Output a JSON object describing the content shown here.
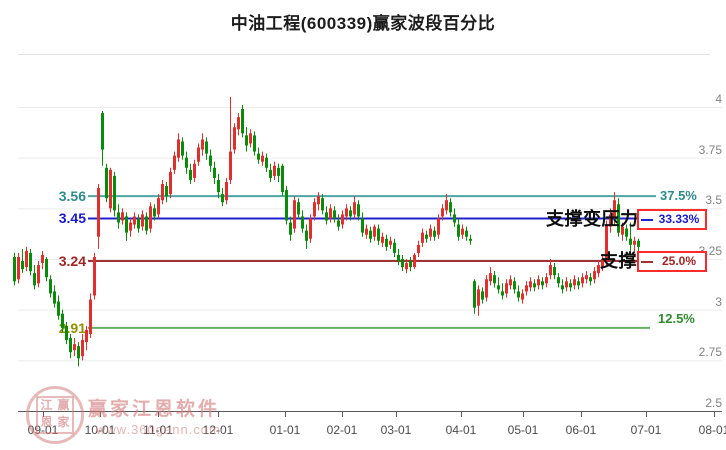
{
  "header": {
    "title": "中油工程(600339)赢家波段百分比"
  },
  "annotations": {
    "support_becomes_resistance": "支撑变压力",
    "support": "支撑"
  },
  "watermark": {
    "brand": "赢家江恩软件",
    "url": "www.360gann.com",
    "seal_chars": [
      "江",
      "赢",
      "恩",
      "家"
    ]
  },
  "colors": {
    "up": "#e12e2e",
    "down": "#0b8b0b",
    "teal_band": "#4da6a6",
    "teal_text": "#2e8b8b",
    "blue_band": "#2121cc",
    "blue_text": "#1a1acd",
    "darkred_band": "#a03434",
    "darkred_text": "#a02525",
    "green_band": "#63b163",
    "green_text": "#2e8b2e",
    "olive_text": "#8f8f00",
    "box_border": "#ff2a2a",
    "grid": "#ebebeb",
    "axis": "#5a5a5a",
    "y_tick_text": "#828282",
    "x_tick_text": "#4c4c4c"
  },
  "chart_data": {
    "type": "candlestick",
    "title": "中油工程(600339)赢家波段百分比",
    "ylim": [
      2.5,
      4.0
    ],
    "grid": true,
    "y_axis": {
      "values": [
        4,
        3.75,
        3.5,
        3.25,
        3,
        2.75,
        2.5
      ],
      "labels": [
        "4",
        "3.75",
        "3.5",
        "3.25",
        "3",
        "2.75",
        "2.5"
      ]
    },
    "x_axis": {
      "labels": [
        "09-01",
        "10-01",
        "11-01",
        "12-01",
        "01-01",
        "02-01",
        "03-01",
        "04-01",
        "05-01",
        "06-01",
        "07-01",
        "08-01"
      ],
      "tick_x": [
        43,
        100,
        158,
        218,
        285,
        342,
        396,
        461,
        523,
        581,
        646,
        714
      ]
    },
    "reference_lines": [
      {
        "id": "band-37-5",
        "price": 3.56,
        "price_label": "3.56",
        "pct_label": "37.5%",
        "boxed": false,
        "x_end": 656
      },
      {
        "id": "band-33-33",
        "price": 3.45,
        "price_label": "3.45",
        "pct_label": "33.33%",
        "boxed": true,
        "x_end": 652
      },
      {
        "id": "band-25-0",
        "price": 3.24,
        "price_label": "3.24",
        "pct_label": "25.0%",
        "boxed": true,
        "x_end": 652
      },
      {
        "id": "band-12-5",
        "price": 2.91,
        "price_label": "2.91",
        "pct_label": "12.5%",
        "boxed": false,
        "x_end": 650
      }
    ],
    "candles_format": [
      "open",
      "high",
      "low",
      "close"
    ],
    "candles": [
      [
        3.26,
        3.28,
        3.12,
        3.14
      ],
      [
        3.15,
        3.28,
        3.13,
        3.26
      ],
      [
        3.24,
        3.3,
        3.18,
        3.2
      ],
      [
        3.21,
        3.31,
        3.19,
        3.29
      ],
      [
        3.28,
        3.3,
        3.17,
        3.19
      ],
      [
        3.18,
        3.22,
        3.1,
        3.12
      ],
      [
        3.13,
        3.24,
        3.11,
        3.22
      ],
      [
        3.23,
        3.29,
        3.2,
        3.27
      ],
      [
        3.25,
        3.26,
        3.14,
        3.16
      ],
      [
        3.15,
        3.17,
        3.06,
        3.08
      ],
      [
        3.09,
        3.12,
        3.01,
        3.03
      ],
      [
        3.04,
        3.07,
        2.95,
        2.97
      ],
      [
        2.98,
        3.0,
        2.89,
        2.91
      ],
      [
        2.92,
        2.94,
        2.83,
        2.85
      ],
      [
        2.86,
        2.88,
        2.76,
        2.79
      ],
      [
        2.8,
        2.86,
        2.77,
        2.83
      ],
      [
        2.82,
        2.84,
        2.72,
        2.76
      ],
      [
        2.77,
        2.88,
        2.75,
        2.85
      ],
      [
        2.84,
        2.92,
        2.8,
        2.9
      ],
      [
        2.88,
        3.08,
        2.86,
        3.05
      ],
      [
        3.07,
        3.28,
        3.05,
        3.26
      ],
      [
        3.36,
        3.62,
        3.3,
        3.6
      ],
      [
        3.97,
        3.98,
        3.71,
        3.79
      ],
      [
        3.7,
        3.72,
        3.53,
        3.55
      ],
      [
        3.5,
        3.7,
        3.48,
        3.69
      ],
      [
        3.66,
        3.68,
        3.46,
        3.49
      ],
      [
        3.48,
        3.52,
        3.4,
        3.43
      ],
      [
        3.44,
        3.5,
        3.42,
        3.48
      ],
      [
        3.46,
        3.48,
        3.34,
        3.38
      ],
      [
        3.39,
        3.45,
        3.36,
        3.43
      ],
      [
        3.42,
        3.48,
        3.4,
        3.46
      ],
      [
        3.45,
        3.47,
        3.38,
        3.4
      ],
      [
        3.41,
        3.49,
        3.39,
        3.47
      ],
      [
        3.46,
        3.48,
        3.37,
        3.39
      ],
      [
        3.4,
        3.53,
        3.38,
        3.51
      ],
      [
        3.5,
        3.52,
        3.44,
        3.46
      ],
      [
        3.47,
        3.57,
        3.45,
        3.55
      ],
      [
        3.54,
        3.64,
        3.52,
        3.62
      ],
      [
        3.61,
        3.63,
        3.53,
        3.56
      ],
      [
        3.57,
        3.7,
        3.55,
        3.68
      ],
      [
        3.69,
        3.78,
        3.67,
        3.76
      ],
      [
        3.75,
        3.87,
        3.73,
        3.84
      ],
      [
        3.83,
        3.85,
        3.74,
        3.76
      ],
      [
        3.75,
        3.78,
        3.67,
        3.7
      ],
      [
        3.69,
        3.72,
        3.62,
        3.64
      ],
      [
        3.65,
        3.74,
        3.63,
        3.72
      ],
      [
        3.73,
        3.82,
        3.71,
        3.8
      ],
      [
        3.79,
        3.87,
        3.76,
        3.84
      ],
      [
        3.83,
        3.85,
        3.74,
        3.77
      ],
      [
        3.76,
        3.79,
        3.68,
        3.71
      ],
      [
        3.7,
        3.73,
        3.62,
        3.65
      ],
      [
        3.64,
        3.67,
        3.55,
        3.58
      ],
      [
        3.57,
        3.6,
        3.51,
        3.53
      ],
      [
        3.54,
        3.65,
        3.52,
        3.63
      ],
      [
        3.64,
        4.05,
        3.62,
        3.78
      ],
      [
        3.79,
        3.92,
        3.77,
        3.9
      ],
      [
        3.89,
        3.97,
        3.86,
        3.95
      ],
      [
        3.99,
        4.01,
        3.85,
        3.87
      ],
      [
        3.86,
        3.9,
        3.78,
        3.81
      ],
      [
        3.82,
        3.89,
        3.8,
        3.87
      ],
      [
        3.86,
        3.88,
        3.76,
        3.78
      ],
      [
        3.77,
        3.8,
        3.72,
        3.74
      ],
      [
        3.73,
        3.78,
        3.71,
        3.76
      ],
      [
        3.75,
        3.77,
        3.68,
        3.7
      ],
      [
        3.69,
        3.72,
        3.63,
        3.65
      ],
      [
        3.66,
        3.73,
        3.64,
        3.71
      ],
      [
        3.7,
        3.72,
        3.63,
        3.66
      ],
      [
        3.71,
        3.72,
        3.56,
        3.58
      ],
      [
        3.59,
        3.61,
        3.42,
        3.44
      ],
      [
        3.43,
        3.46,
        3.34,
        3.37
      ],
      [
        3.4,
        3.56,
        3.38,
        3.54
      ],
      [
        3.53,
        3.55,
        3.45,
        3.47
      ],
      [
        3.46,
        3.49,
        3.38,
        3.4
      ],
      [
        3.39,
        3.42,
        3.3,
        3.34
      ],
      [
        3.35,
        3.47,
        3.33,
        3.45
      ],
      [
        3.46,
        3.55,
        3.44,
        3.53
      ],
      [
        3.52,
        3.58,
        3.49,
        3.56
      ],
      [
        3.55,
        3.57,
        3.47,
        3.49
      ],
      [
        3.48,
        3.51,
        3.42,
        3.44
      ],
      [
        3.45,
        3.52,
        3.43,
        3.5
      ],
      [
        3.49,
        3.51,
        3.43,
        3.45
      ],
      [
        3.44,
        3.47,
        3.39,
        3.41
      ],
      [
        3.42,
        3.49,
        3.4,
        3.47
      ],
      [
        3.46,
        3.52,
        3.44,
        3.5
      ],
      [
        3.49,
        3.51,
        3.44,
        3.46
      ],
      [
        3.47,
        3.56,
        3.45,
        3.53
      ],
      [
        3.52,
        3.54,
        3.44,
        3.46
      ],
      [
        3.45,
        3.48,
        3.36,
        3.38
      ],
      [
        3.37,
        3.42,
        3.35,
        3.4
      ],
      [
        3.39,
        3.41,
        3.33,
        3.35
      ],
      [
        3.36,
        3.42,
        3.34,
        3.41
      ],
      [
        3.4,
        3.42,
        3.32,
        3.34
      ],
      [
        3.33,
        3.38,
        3.31,
        3.36
      ],
      [
        3.35,
        3.37,
        3.29,
        3.31
      ],
      [
        3.32,
        3.36,
        3.3,
        3.34
      ],
      [
        3.33,
        3.35,
        3.26,
        3.28
      ],
      [
        3.27,
        3.3,
        3.22,
        3.24
      ],
      [
        3.25,
        3.27,
        3.19,
        3.21
      ],
      [
        3.2,
        3.25,
        3.18,
        3.23
      ],
      [
        3.24,
        3.26,
        3.19,
        3.21
      ],
      [
        3.21,
        3.28,
        3.2,
        3.27
      ],
      [
        3.28,
        3.34,
        3.26,
        3.32
      ],
      [
        3.33,
        3.4,
        3.31,
        3.38
      ],
      [
        3.37,
        3.39,
        3.33,
        3.35
      ],
      [
        3.36,
        3.42,
        3.34,
        3.4
      ],
      [
        3.39,
        3.41,
        3.34,
        3.36
      ],
      [
        3.37,
        3.47,
        3.35,
        3.45
      ],
      [
        3.46,
        3.52,
        3.44,
        3.5
      ],
      [
        3.49,
        3.57,
        3.47,
        3.54
      ],
      [
        3.53,
        3.55,
        3.46,
        3.48
      ],
      [
        3.47,
        3.5,
        3.41,
        3.43
      ],
      [
        3.42,
        3.45,
        3.34,
        3.36
      ],
      [
        3.37,
        3.42,
        3.35,
        3.4
      ],
      [
        3.39,
        3.41,
        3.34,
        3.36
      ],
      [
        3.35,
        3.37,
        3.32,
        3.34
      ],
      [
        3.14,
        3.15,
        2.98,
        3.01
      ],
      [
        3.02,
        3.12,
        2.97,
        3.1
      ],
      [
        3.09,
        3.11,
        3.03,
        3.05
      ],
      [
        3.06,
        3.17,
        3.04,
        3.15
      ],
      [
        3.14,
        3.21,
        3.12,
        3.18
      ],
      [
        3.17,
        3.19,
        3.11,
        3.13
      ],
      [
        3.12,
        3.16,
        3.08,
        3.1
      ],
      [
        3.09,
        3.13,
        3.05,
        3.07
      ],
      [
        3.08,
        3.15,
        3.06,
        3.13
      ],
      [
        3.12,
        3.17,
        3.1,
        3.15
      ],
      [
        3.14,
        3.16,
        3.08,
        3.1
      ],
      [
        3.09,
        3.12,
        3.04,
        3.06
      ],
      [
        3.05,
        3.1,
        3.03,
        3.08
      ],
      [
        3.09,
        3.14,
        3.07,
        3.12
      ],
      [
        3.11,
        3.16,
        3.09,
        3.14
      ],
      [
        3.13,
        3.15,
        3.09,
        3.11
      ],
      [
        3.12,
        3.17,
        3.1,
        3.15
      ],
      [
        3.14,
        3.16,
        3.1,
        3.12
      ],
      [
        3.13,
        3.18,
        3.11,
        3.16
      ],
      [
        3.17,
        3.25,
        3.15,
        3.22
      ],
      [
        3.21,
        3.23,
        3.15,
        3.17
      ],
      [
        3.16,
        3.18,
        3.11,
        3.13
      ],
      [
        3.12,
        3.15,
        3.08,
        3.1
      ],
      [
        3.11,
        3.16,
        3.09,
        3.14
      ],
      [
        3.13,
        3.15,
        3.09,
        3.11
      ],
      [
        3.12,
        3.17,
        3.1,
        3.15
      ],
      [
        3.14,
        3.16,
        3.1,
        3.12
      ],
      [
        3.13,
        3.18,
        3.11,
        3.16
      ],
      [
        3.15,
        3.19,
        3.13,
        3.17
      ],
      [
        3.16,
        3.18,
        3.12,
        3.14
      ],
      [
        3.15,
        3.21,
        3.13,
        3.19
      ],
      [
        3.18,
        3.24,
        3.16,
        3.22
      ],
      [
        3.21,
        3.27,
        3.19,
        3.25
      ],
      [
        3.24,
        3.44,
        3.22,
        3.42
      ],
      [
        3.41,
        3.5,
        3.38,
        3.47
      ],
      [
        3.46,
        3.58,
        3.42,
        3.54
      ],
      [
        3.52,
        3.55,
        3.36,
        3.38
      ],
      [
        3.37,
        3.43,
        3.34,
        3.41
      ],
      [
        3.4,
        3.42,
        3.34,
        3.36
      ],
      [
        3.35,
        3.43,
        3.29,
        3.32
      ],
      [
        3.32,
        3.36,
        3.28,
        3.34
      ],
      [
        3.34,
        3.35,
        3.29,
        3.31
      ]
    ]
  }
}
